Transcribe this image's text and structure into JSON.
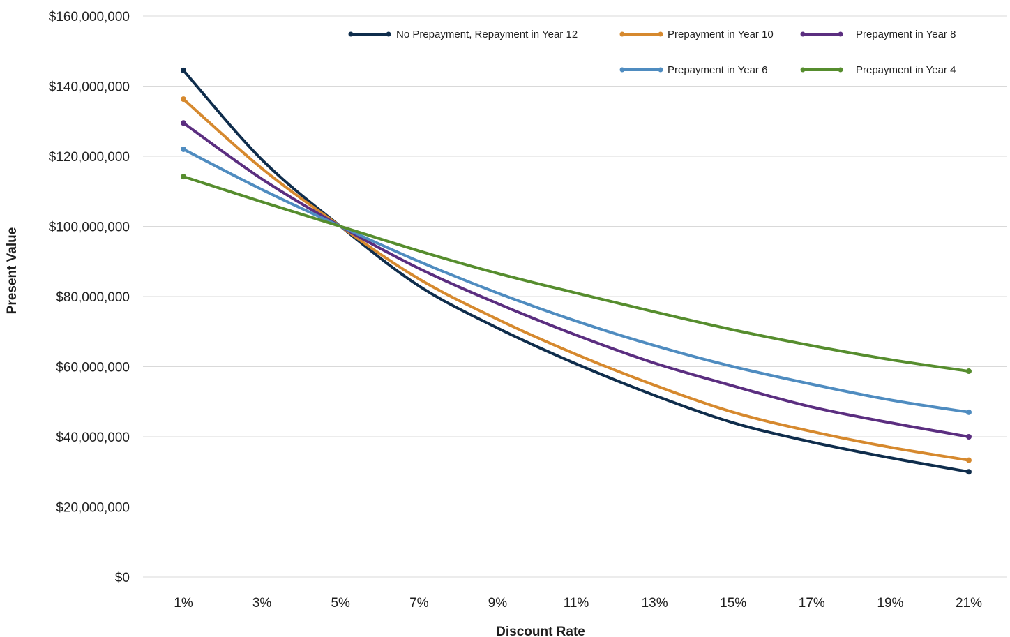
{
  "chart_data": {
    "type": "line",
    "title": "",
    "xlabel": "Discount Rate",
    "ylabel": "Present Value",
    "x": [
      1,
      3,
      5,
      7,
      9,
      11,
      13,
      15,
      17,
      19,
      21
    ],
    "x_tick_labels": [
      "1%",
      "3%",
      "5%",
      "7%",
      "9%",
      "11%",
      "13%",
      "15%",
      "17%",
      "19%",
      "21%"
    ],
    "ylim": [
      0,
      160000000
    ],
    "y_ticks": [
      0,
      20000000,
      40000000,
      60000000,
      80000000,
      100000000,
      120000000,
      140000000,
      160000000
    ],
    "y_tick_labels": [
      "$0",
      "$20,000,000",
      "$40,000,000",
      "$60,000,000",
      "$80,000,000",
      "$100,000,000",
      "$120,000,000",
      "$140,000,000",
      "$160,000,000"
    ],
    "grid": true,
    "legend_position": "top-right",
    "series": [
      {
        "name": "No Prepayment, Repayment in Year 12",
        "color": "#0f2d4c",
        "values": [
          144500000,
          119000000,
          100000000,
          83000000,
          71000000,
          60800000,
          51800000,
          44000000,
          38500000,
          34000000,
          30000000
        ]
      },
      {
        "name": "Prepayment in Year 10",
        "color": "#d6892e",
        "values": [
          136300000,
          116500000,
          100000000,
          85000000,
          73500000,
          63500000,
          54700000,
          47000000,
          41500000,
          37000000,
          33300000
        ]
      },
      {
        "name": "Prepayment in Year 8",
        "color": "#5b2e80",
        "values": [
          129500000,
          113500000,
          100000000,
          88000000,
          78000000,
          69000000,
          61000000,
          54500000,
          48500000,
          44000000,
          40000000
        ]
      },
      {
        "name": "Prepayment in Year 6",
        "color": "#4f8cc0",
        "values": [
          122000000,
          110500000,
          100000000,
          90000000,
          81000000,
          73000000,
          66000000,
          60000000,
          55000000,
          50500000,
          47000000
        ]
      },
      {
        "name": "Prepayment in Year 4",
        "color": "#568d2e",
        "values": [
          114200000,
          107000000,
          100000000,
          93000000,
          86600000,
          81000000,
          75600000,
          70500000,
          66000000,
          62000000,
          58700000
        ]
      }
    ]
  }
}
